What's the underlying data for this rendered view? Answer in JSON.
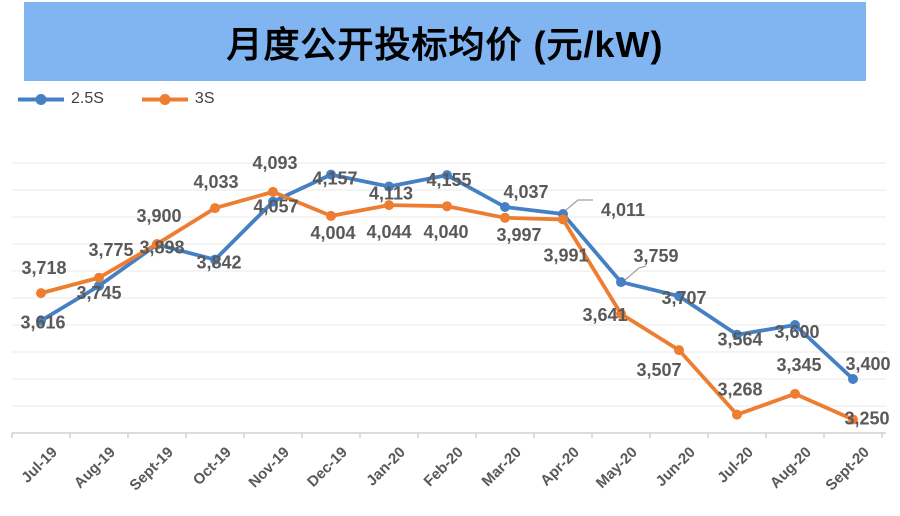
{
  "title": "月度公开投标均价 (元/kW)",
  "banner": {
    "background": "#80B5F2",
    "text_color": "#000000"
  },
  "legend": [
    {
      "label": "2.5S",
      "color": "#4680C4"
    },
    {
      "label": "3S",
      "color": "#ED7D31"
    }
  ],
  "chart_data": {
    "type": "line",
    "title": "月度公开投标均价 (元/kW)",
    "xlabel": "",
    "ylabel": "",
    "categories": [
      "Jul-19",
      "Aug-19",
      "Sept-19",
      "Oct-19",
      "Nov-19",
      "Dec-19",
      "Jan-20",
      "Feb-20",
      "Mar-20",
      "Apr-20",
      "May-20",
      "Jun-20",
      "Jul-20",
      "Aug-20",
      "Sept-20"
    ],
    "series": [
      {
        "name": "2.5S",
        "color": "#4680C4",
        "values": [
          3616,
          3745,
          3898,
          3842,
          4057,
          4157,
          4113,
          4155,
          4037,
          4011,
          3759,
          3707,
          3564,
          3600,
          3400
        ]
      },
      {
        "name": "3S",
        "color": "#ED7D31",
        "values": [
          3718,
          3775,
          3900,
          4033,
          4093,
          4004,
          4044,
          4040,
          3997,
          3991,
          3641,
          3507,
          3268,
          3345,
          3250
        ]
      }
    ],
    "ylim": [
      3200,
      4200
    ],
    "grid": {
      "visible": true,
      "step": 100
    },
    "legend_position": "top-left",
    "data_labels": true,
    "label_color": "#595959",
    "axis_label_color": "#595959",
    "gridline_color": "#E8E8E8",
    "axis_line_color": "#C6C6C6",
    "label_offsets": [
      [
        [
          2,
          2
        ],
        [
          0,
          7
        ],
        [
          5,
          3
        ],
        [
          4,
          3
        ],
        [
          3,
          5
        ],
        [
          4,
          4
        ],
        [
          2,
          7
        ],
        [
          2,
          5
        ],
        [
          21,
          -15
        ],
        [
          60,
          -4
        ],
        [
          35,
          -26
        ],
        [
          5,
          2
        ],
        [
          3,
          5
        ],
        [
          2,
          7
        ],
        [
          15,
          -15
        ]
      ],
      [
        [
          3,
          -25
        ],
        [
          12,
          -28
        ],
        [
          2,
          -28
        ],
        [
          1,
          -26
        ],
        [
          2,
          -29
        ],
        [
          2,
          17
        ],
        [
          0,
          27
        ],
        [
          -1,
          26
        ],
        [
          14,
          17
        ],
        [
          3,
          36
        ],
        [
          -16,
          1
        ],
        [
          -20,
          20
        ],
        [
          3,
          -25
        ],
        [
          4,
          -29
        ],
        [
          14,
          -1
        ]
      ]
    ],
    "callouts": [
      {
        "series": 0,
        "index": 9,
        "leader": [
          [
            566,
            210
          ],
          [
            578,
            200
          ],
          [
            593,
            200
          ]
        ]
      },
      {
        "series": 0,
        "index": 10,
        "leader": [
          [
            625,
            280
          ],
          [
            639,
            268
          ],
          [
            646,
            266
          ]
        ]
      }
    ]
  }
}
